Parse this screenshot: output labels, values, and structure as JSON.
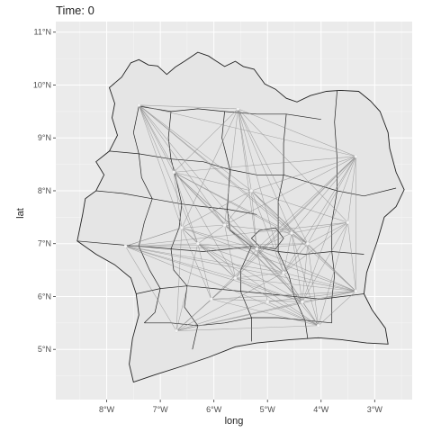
{
  "title": "Time: 0",
  "axes": {
    "xlabel": "long",
    "ylabel": "lat",
    "xlim": [
      -8.95,
      -2.3
    ],
    "ylim": [
      4.05,
      11.2
    ],
    "x_ticks": [
      {
        "value": -8,
        "label": "8°W"
      },
      {
        "value": -7,
        "label": "7°W"
      },
      {
        "value": -6,
        "label": "6°W"
      },
      {
        "value": -5,
        "label": "5°W"
      },
      {
        "value": -4,
        "label": "4°W"
      },
      {
        "value": -3,
        "label": "3°W"
      }
    ],
    "y_ticks": [
      {
        "value": 5,
        "label": "5°N"
      },
      {
        "value": 6,
        "label": "6°N"
      },
      {
        "value": 7,
        "label": "7°N"
      },
      {
        "value": 8,
        "label": "8°N"
      },
      {
        "value": 9,
        "label": "9°N"
      },
      {
        "value": 10,
        "label": "10°N"
      },
      {
        "value": 11,
        "label": "11°N"
      }
    ]
  },
  "colors": {
    "panel": "#ebebeb",
    "grid": "#ffffff",
    "land": "#e5e5e5",
    "border": "#222222",
    "edge": "#8a8a8a",
    "node": "#f4f4f4"
  },
  "map": {
    "boundary": [
      [
        -7.55,
        10.42
      ],
      [
        -7.4,
        10.48
      ],
      [
        -7.22,
        10.38
      ],
      [
        -7.05,
        10.36
      ],
      [
        -6.88,
        10.2
      ],
      [
        -6.72,
        10.34
      ],
      [
        -6.55,
        10.45
      ],
      [
        -6.3,
        10.62
      ],
      [
        -6.1,
        10.55
      ],
      [
        -5.95,
        10.45
      ],
      [
        -5.8,
        10.35
      ],
      [
        -5.6,
        10.45
      ],
      [
        -5.45,
        10.35
      ],
      [
        -5.25,
        10.3
      ],
      [
        -5.05,
        10.02
      ],
      [
        -4.85,
        9.92
      ],
      [
        -4.65,
        9.75
      ],
      [
        -4.45,
        9.68
      ],
      [
        -4.2,
        9.8
      ],
      [
        -3.9,
        9.88
      ],
      [
        -3.65,
        9.9
      ],
      [
        -3.3,
        9.88
      ],
      [
        -3.08,
        9.7
      ],
      [
        -2.9,
        9.5
      ],
      [
        -2.75,
        9.1
      ],
      [
        -2.72,
        8.8
      ],
      [
        -2.6,
        8.35
      ],
      [
        -2.45,
        8.02
      ],
      [
        -2.6,
        7.7
      ],
      [
        -2.82,
        7.5
      ],
      [
        -2.95,
        7.05
      ],
      [
        -3.05,
        6.75
      ],
      [
        -3.15,
        6.45
      ],
      [
        -3.2,
        6.05
      ],
      [
        -3.05,
        5.75
      ],
      [
        -2.8,
        5.4
      ],
      [
        -2.75,
        5.1
      ],
      [
        -3.15,
        5.12
      ],
      [
        -3.6,
        5.18
      ],
      [
        -4.05,
        5.22
      ],
      [
        -4.6,
        5.18
      ],
      [
        -5.2,
        5.12
      ],
      [
        -5.6,
        5.05
      ],
      [
        -6.1,
        4.85
      ],
      [
        -6.6,
        4.68
      ],
      [
        -7.1,
        4.52
      ],
      [
        -7.5,
        4.38
      ],
      [
        -7.58,
        4.72
      ],
      [
        -7.52,
        5.2
      ],
      [
        -7.4,
        5.65
      ],
      [
        -7.45,
        6.05
      ],
      [
        -7.55,
        6.35
      ],
      [
        -7.85,
        6.6
      ],
      [
        -8.2,
        6.8
      ],
      [
        -8.55,
        7.05
      ],
      [
        -8.45,
        7.55
      ],
      [
        -8.4,
        7.85
      ],
      [
        -8.2,
        8.0
      ],
      [
        -8.05,
        8.3
      ],
      [
        -8.2,
        8.55
      ],
      [
        -7.95,
        8.75
      ],
      [
        -7.8,
        9.05
      ],
      [
        -7.9,
        9.38
      ],
      [
        -7.85,
        9.65
      ],
      [
        -7.95,
        9.95
      ],
      [
        -7.72,
        10.15
      ],
      [
        -7.55,
        10.42
      ]
    ],
    "regions": [
      [
        [
          -7.4,
          9.6
        ],
        [
          -6.8,
          9.5
        ],
        [
          -6.3,
          9.55
        ],
        [
          -5.8,
          9.5
        ],
        [
          -5.2,
          9.45
        ],
        [
          -4.65,
          9.45
        ],
        [
          -4.0,
          9.35
        ]
      ],
      [
        [
          -7.95,
          8.75
        ],
        [
          -7.4,
          8.7
        ],
        [
          -6.8,
          8.6
        ],
        [
          -6.2,
          8.55
        ],
        [
          -5.7,
          8.4
        ],
        [
          -5.2,
          8.3
        ],
        [
          -4.7,
          8.3
        ],
        [
          -4.2,
          8.15
        ],
        [
          -3.7,
          8.0
        ],
        [
          -3.2,
          7.9
        ],
        [
          -2.6,
          8.05
        ]
      ],
      [
        [
          -8.2,
          8.0
        ],
        [
          -7.7,
          7.95
        ],
        [
          -7.15,
          7.85
        ],
        [
          -6.6,
          7.75
        ],
        [
          -6.2,
          7.7
        ],
        [
          -5.75,
          7.65
        ],
        [
          -5.2,
          7.55
        ]
      ],
      [
        [
          -8.55,
          7.05
        ],
        [
          -8.0,
          7.0
        ],
        [
          -7.4,
          6.95
        ],
        [
          -6.8,
          6.9
        ],
        [
          -6.2,
          6.85
        ],
        [
          -5.7,
          6.9
        ],
        [
          -5.3,
          6.95
        ],
        [
          -4.8,
          6.85
        ],
        [
          -4.3,
          6.8
        ],
        [
          -3.8,
          6.85
        ],
        [
          -3.2,
          6.8
        ]
      ],
      [
        [
          -7.45,
          6.05
        ],
        [
          -7.0,
          6.15
        ],
        [
          -6.5,
          6.2
        ],
        [
          -6.0,
          6.15
        ],
        [
          -5.5,
          6.1
        ],
        [
          -5.0,
          6.05
        ],
        [
          -4.5,
          6.0
        ],
        [
          -4.0,
          5.95
        ],
        [
          -3.2,
          6.05
        ]
      ],
      [
        [
          -7.3,
          5.5
        ],
        [
          -6.8,
          5.5
        ],
        [
          -6.3,
          5.45
        ],
        [
          -5.8,
          5.5
        ],
        [
          -5.3,
          5.6
        ],
        [
          -4.8,
          5.6
        ],
        [
          -4.3,
          5.55
        ],
        [
          -3.8,
          5.5
        ]
      ],
      [
        [
          -6.8,
          9.5
        ],
        [
          -6.85,
          9.0
        ],
        [
          -6.8,
          8.6
        ],
        [
          -6.7,
          8.2
        ],
        [
          -6.6,
          7.75
        ],
        [
          -6.65,
          7.3
        ],
        [
          -6.8,
          6.9
        ],
        [
          -6.75,
          6.5
        ],
        [
          -6.5,
          6.2
        ],
        [
          -6.55,
          5.8
        ],
        [
          -6.3,
          5.45
        ],
        [
          -6.4,
          5.0
        ]
      ],
      [
        [
          -5.8,
          9.5
        ],
        [
          -5.85,
          9.0
        ],
        [
          -5.7,
          8.4
        ],
        [
          -5.75,
          7.65
        ],
        [
          -5.7,
          7.25
        ],
        [
          -5.3,
          6.95
        ],
        [
          -5.5,
          6.5
        ],
        [
          -5.5,
          6.1
        ],
        [
          -5.3,
          5.6
        ],
        [
          -5.3,
          5.15
        ]
      ],
      [
        [
          -4.65,
          9.45
        ],
        [
          -4.7,
          8.9
        ],
        [
          -4.7,
          8.3
        ],
        [
          -4.8,
          7.8
        ],
        [
          -4.8,
          7.3
        ],
        [
          -4.8,
          6.85
        ],
        [
          -4.6,
          6.4
        ],
        [
          -4.5,
          6.0
        ],
        [
          -4.3,
          5.55
        ],
        [
          -4.25,
          5.2
        ]
      ],
      [
        [
          -3.7,
          9.9
        ],
        [
          -3.75,
          9.3
        ],
        [
          -3.7,
          8.6
        ],
        [
          -3.7,
          8.0
        ],
        [
          -3.8,
          7.4
        ],
        [
          -3.8,
          6.85
        ],
        [
          -3.75,
          6.4
        ],
        [
          -3.8,
          5.95
        ],
        [
          -3.8,
          5.5
        ]
      ],
      [
        [
          -7.4,
          9.6
        ],
        [
          -7.5,
          9.1
        ],
        [
          -7.4,
          8.7
        ],
        [
          -7.35,
          8.25
        ],
        [
          -7.15,
          7.85
        ],
        [
          -7.3,
          7.4
        ],
        [
          -7.4,
          6.95
        ],
        [
          -7.2,
          6.5
        ],
        [
          -7.0,
          6.15
        ],
        [
          -7.1,
          5.7
        ],
        [
          -7.3,
          5.5
        ]
      ],
      [
        [
          -5.15,
          7.25
        ],
        [
          -4.85,
          7.3
        ],
        [
          -4.7,
          7.1
        ],
        [
          -4.85,
          6.9
        ],
        [
          -5.15,
          6.95
        ],
        [
          -5.3,
          7.1
        ],
        [
          -5.15,
          7.25
        ]
      ]
    ]
  },
  "network": {
    "nodes": [
      {
        "lon": -7.4,
        "lat": 9.62
      },
      {
        "lon": -5.55,
        "lat": 9.55
      },
      {
        "lon": -3.35,
        "lat": 8.65
      },
      {
        "lon": -6.75,
        "lat": 8.35
      },
      {
        "lon": -5.3,
        "lat": 8.0
      },
      {
        "lon": -6.6,
        "lat": 7.3
      },
      {
        "lon": -5.8,
        "lat": 7.35
      },
      {
        "lon": -4.55,
        "lat": 7.2
      },
      {
        "lon": -7.65,
        "lat": 6.95
      },
      {
        "lon": -6.3,
        "lat": 7.0
      },
      {
        "lon": -5.2,
        "lat": 6.9
      },
      {
        "lon": -4.25,
        "lat": 7.0
      },
      {
        "lon": -3.5,
        "lat": 7.4
      },
      {
        "lon": -5.6,
        "lat": 6.35
      },
      {
        "lon": -4.7,
        "lat": 6.45
      },
      {
        "lon": -6.05,
        "lat": 5.95
      },
      {
        "lon": -4.35,
        "lat": 5.9
      },
      {
        "lon": -3.35,
        "lat": 6.1
      },
      {
        "lon": -6.7,
        "lat": 5.35
      },
      {
        "lon": -4.05,
        "lat": 5.45
      },
      {
        "lon": -5.0,
        "lat": 5.9
      }
    ],
    "edges": [
      [
        0,
        1
      ],
      [
        0,
        2
      ],
      [
        0,
        3
      ],
      [
        0,
        4
      ],
      [
        0,
        5
      ],
      [
        0,
        6
      ],
      [
        0,
        7
      ],
      [
        0,
        9
      ],
      [
        0,
        10
      ],
      [
        0,
        11
      ],
      [
        0,
        13
      ],
      [
        1,
        2
      ],
      [
        1,
        3
      ],
      [
        1,
        4
      ],
      [
        1,
        5
      ],
      [
        1,
        6
      ],
      [
        1,
        7
      ],
      [
        1,
        10
      ],
      [
        1,
        11
      ],
      [
        1,
        12
      ],
      [
        1,
        14
      ],
      [
        2,
        3
      ],
      [
        2,
        4
      ],
      [
        2,
        6
      ],
      [
        2,
        7
      ],
      [
        2,
        10
      ],
      [
        2,
        11
      ],
      [
        2,
        12
      ],
      [
        2,
        13
      ],
      [
        2,
        14
      ],
      [
        2,
        16
      ],
      [
        2,
        17
      ],
      [
        2,
        15
      ],
      [
        3,
        4
      ],
      [
        3,
        5
      ],
      [
        3,
        6
      ],
      [
        3,
        7
      ],
      [
        3,
        9
      ],
      [
        3,
        10
      ],
      [
        3,
        11
      ],
      [
        3,
        14
      ],
      [
        3,
        16
      ],
      [
        4,
        5
      ],
      [
        4,
        6
      ],
      [
        4,
        7
      ],
      [
        4,
        10
      ],
      [
        4,
        11
      ],
      [
        4,
        12
      ],
      [
        4,
        14
      ],
      [
        4,
        17
      ],
      [
        5,
        6
      ],
      [
        5,
        8
      ],
      [
        5,
        9
      ],
      [
        5,
        10
      ],
      [
        5,
        13
      ],
      [
        5,
        15
      ],
      [
        5,
        18
      ],
      [
        5,
        17
      ],
      [
        6,
        7
      ],
      [
        6,
        9
      ],
      [
        6,
        10
      ],
      [
        6,
        13
      ],
      [
        6,
        14
      ],
      [
        6,
        16
      ],
      [
        7,
        10
      ],
      [
        7,
        11
      ],
      [
        7,
        12
      ],
      [
        7,
        14
      ],
      [
        7,
        16
      ],
      [
        7,
        17
      ],
      [
        7,
        19
      ],
      [
        8,
        5
      ],
      [
        8,
        9
      ],
      [
        8,
        10
      ],
      [
        8,
        11
      ],
      [
        8,
        13
      ],
      [
        8,
        14
      ],
      [
        8,
        16
      ],
      [
        8,
        17
      ],
      [
        8,
        18
      ],
      [
        8,
        19
      ],
      [
        8,
        12
      ],
      [
        9,
        10
      ],
      [
        9,
        13
      ],
      [
        9,
        14
      ],
      [
        9,
        15
      ],
      [
        9,
        16
      ],
      [
        9,
        18
      ],
      [
        9,
        19
      ],
      [
        10,
        11
      ],
      [
        10,
        13
      ],
      [
        10,
        14
      ],
      [
        10,
        16
      ],
      [
        10,
        17
      ],
      [
        10,
        19
      ],
      [
        10,
        20
      ],
      [
        11,
        12
      ],
      [
        11,
        14
      ],
      [
        11,
        16
      ],
      [
        11,
        17
      ],
      [
        11,
        19
      ],
      [
        12,
        14
      ],
      [
        12,
        16
      ],
      [
        12,
        17
      ],
      [
        12,
        19
      ],
      [
        13,
        14
      ],
      [
        13,
        15
      ],
      [
        13,
        16
      ],
      [
        13,
        17
      ],
      [
        13,
        18
      ],
      [
        13,
        19
      ],
      [
        14,
        16
      ],
      [
        14,
        17
      ],
      [
        14,
        18
      ],
      [
        14,
        19
      ],
      [
        15,
        16
      ],
      [
        15,
        17
      ],
      [
        15,
        18
      ],
      [
        15,
        19
      ],
      [
        16,
        17
      ],
      [
        16,
        18
      ],
      [
        16,
        19
      ],
      [
        17,
        18
      ],
      [
        17,
        19
      ],
      [
        18,
        19
      ],
      [
        18,
        20
      ],
      [
        20,
        17
      ],
      [
        20,
        19
      ]
    ]
  }
}
